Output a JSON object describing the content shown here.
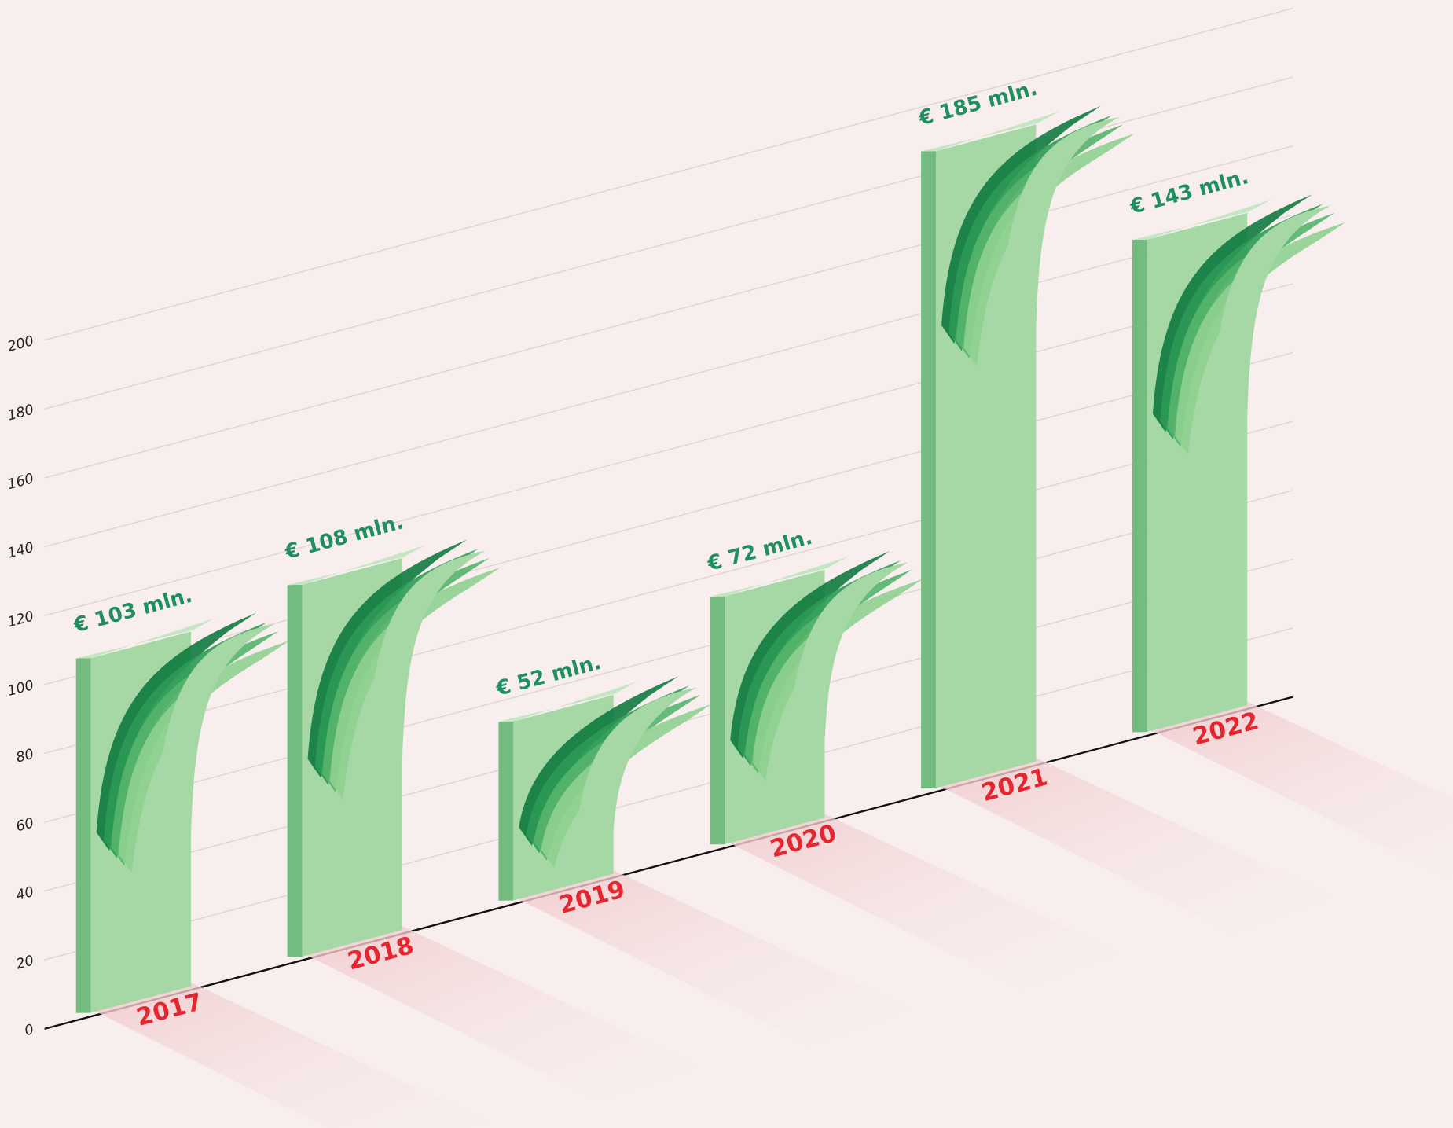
{
  "chart_data": {
    "type": "bar3d",
    "categories": [
      "2017",
      "2018",
      "2019",
      "2020",
      "2021",
      "2022"
    ],
    "values": [
      103,
      108,
      52,
      72,
      185,
      143
    ],
    "value_labels": [
      "€ 103 mln.",
      "€ 108 mln.",
      "€ 52 mln.",
      "€ 72 mln.",
      "€ 185 mln.",
      "€ 143 mln."
    ],
    "color": "#a6d8a6",
    "ylim": [
      0,
      200
    ],
    "yticks": [
      0,
      20,
      40,
      60,
      80,
      100,
      120,
      140,
      160,
      180,
      200
    ],
    "grid": true
  }
}
